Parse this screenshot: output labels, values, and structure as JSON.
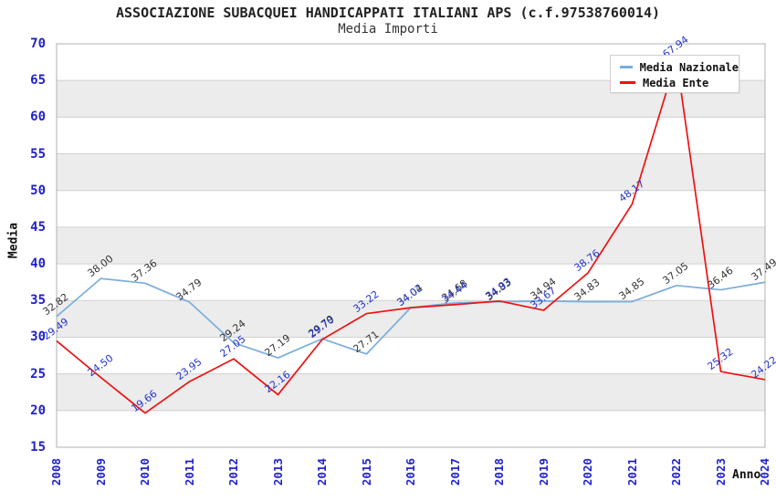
{
  "title": "ASSOCIAZIONE SUBACQUEI HANDICAPPATI ITALIANI APS (c.f.97538760014)",
  "subtitle": "Media Importi",
  "axes": {
    "ylabel": "Media",
    "xlabel": "Anno",
    "yticks": [
      15,
      20,
      25,
      30,
      35,
      40,
      45,
      50,
      55,
      60,
      65,
      70
    ],
    "ylim": [
      15,
      70
    ]
  },
  "legend": {
    "position": "top-right",
    "items": [
      {
        "label": "Media Nazionale",
        "color": "#7aaddc"
      },
      {
        "label": "Media Ente",
        "color": "#ee1111"
      }
    ]
  },
  "colors": {
    "nazionale_line": "#7aaddc",
    "ente_line": "#ee1111",
    "tick_blue": "#2020cc",
    "nazionale_label": "#333333",
    "ente_label": "#2233cc",
    "band_gray": "#ececec",
    "gridline": "#d0d0d0",
    "plot_border": "#b0b0b0"
  },
  "chart_data": {
    "type": "line",
    "title": "ASSOCIAZIONE SUBACQUEI HANDICAPPATI ITALIANI APS (c.f.97538760014)",
    "subtitle": "Media Importi",
    "xlabel": "Anno",
    "ylabel": "Media",
    "ylim": [
      15,
      70
    ],
    "ytick_step": 5,
    "grid": "horizontal-bands-alternating",
    "legend_position": "top-right",
    "categories": [
      "2008",
      "2009",
      "2010",
      "2011",
      "2012",
      "2013",
      "2014",
      "2015",
      "2016",
      "2017",
      "2018",
      "2019",
      "2020",
      "2021",
      "2022",
      "2023",
      "2024"
    ],
    "series": [
      {
        "name": "Media Nazionale",
        "color": "#7aaddc",
        "label_color": "#333333",
        "values": [
          32.82,
          38.0,
          37.36,
          34.79,
          29.24,
          27.19,
          29.79,
          27.71,
          34.04,
          34.68,
          34.83,
          34.94,
          34.83,
          34.85,
          37.05,
          36.46,
          37.49
        ]
      },
      {
        "name": "Media Ente",
        "color": "#ee1111",
        "label_color": "#2233cc",
        "values": [
          29.49,
          24.5,
          19.66,
          23.95,
          27.05,
          22.16,
          29.7,
          33.22,
          34.02,
          34.44,
          34.93,
          33.67,
          38.76,
          48.17,
          67.94,
          25.32,
          24.22
        ]
      }
    ]
  }
}
